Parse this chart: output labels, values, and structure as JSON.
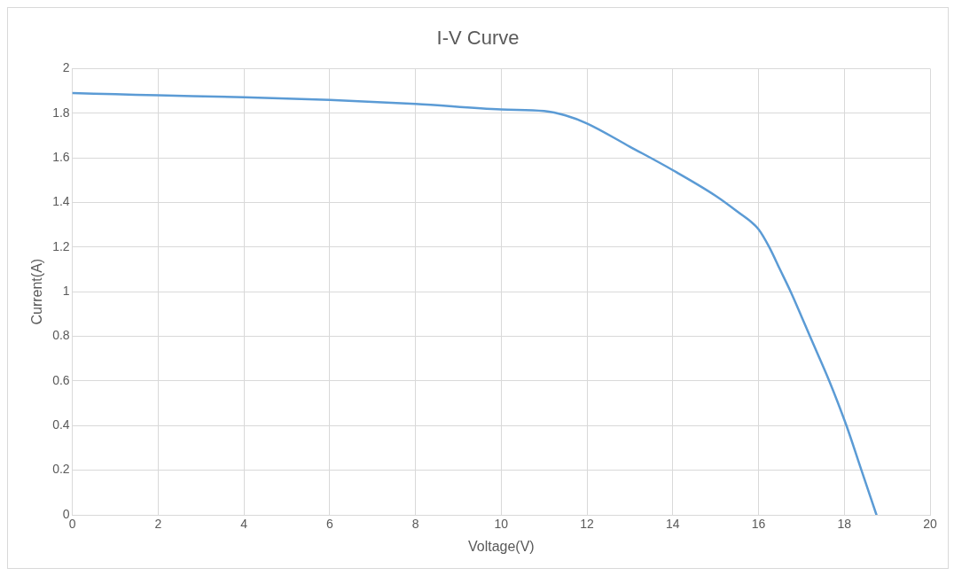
{
  "chart_data": {
    "type": "line",
    "title": "I-V Curve",
    "xlabel": "Voltage(V)",
    "ylabel": "Current(A)",
    "x": [
      0,
      1,
      2,
      4,
      6,
      8,
      10,
      11,
      11.5,
      12,
      13,
      14,
      15,
      15.5,
      16,
      16.25,
      16.5,
      16.75,
      17,
      17.2,
      17.65,
      18.05,
      18.4,
      18.75
    ],
    "series": [
      {
        "color": "#5b9bd5",
        "values": [
          1.89,
          1.885,
          1.88,
          1.872,
          1.86,
          1.842,
          1.817,
          1.81,
          1.79,
          1.754,
          1.65,
          1.545,
          1.43,
          1.36,
          1.28,
          1.2,
          1.1,
          1.0,
          0.89,
          0.8,
          0.6,
          0.4,
          0.2,
          0
        ]
      }
    ],
    "xlim": [
      0,
      20
    ],
    "xticks": [
      0,
      2,
      4,
      6,
      8,
      10,
      12,
      14,
      16,
      18,
      20
    ],
    "ylim": [
      0,
      2
    ],
    "yticks": [
      0,
      0.2,
      0.4,
      0.6,
      0.8,
      1,
      1.2,
      1.4,
      1.6,
      1.8,
      2
    ],
    "grid": true,
    "legend": false,
    "marker": "none",
    "line_style": "solid"
  }
}
